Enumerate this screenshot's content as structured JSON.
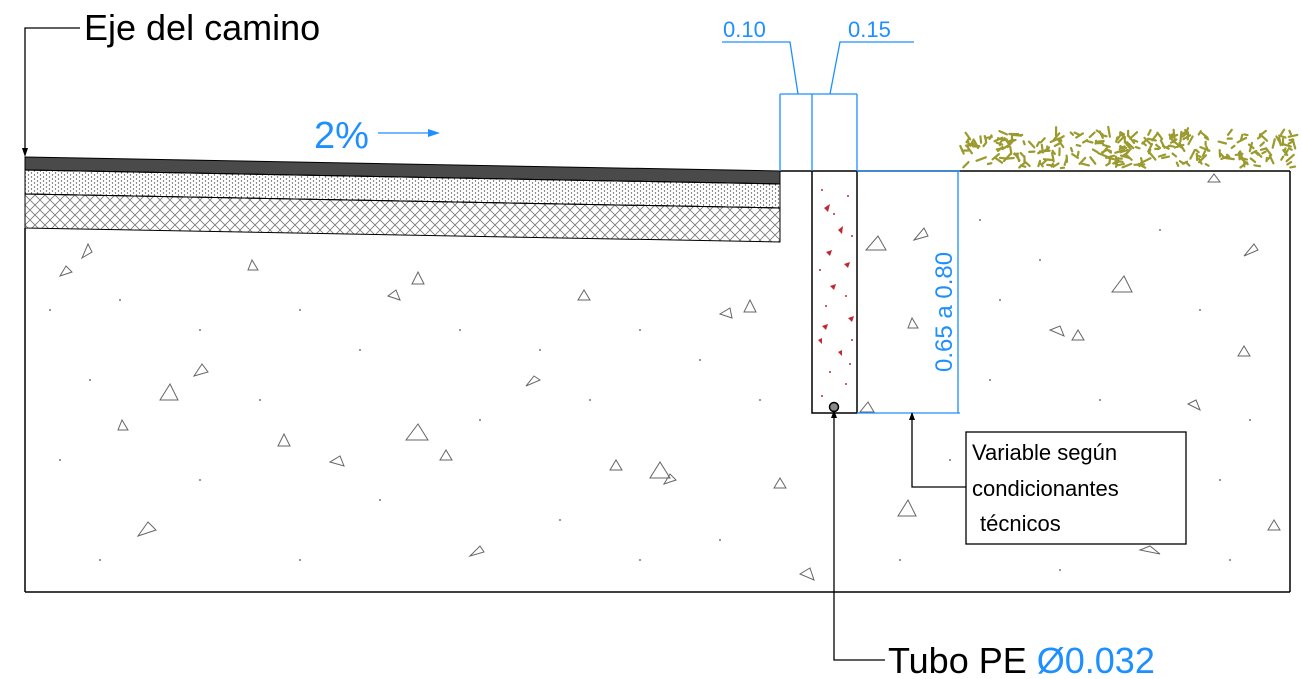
{
  "labels": {
    "road_axis": "Eje del camino",
    "slope": "2%",
    "dim_width_1": "0.10",
    "dim_width_2": "0.15",
    "dim_depth": "0.65 a 0.80",
    "note_line1": "Variable según",
    "note_line2": "condicionantes",
    "note_line3": "técnicos",
    "pipe_prefix": "Tubo PE ",
    "pipe_size": "Ø0.032"
  },
  "colors": {
    "dimension": "#1e8fff",
    "linework": "#000000",
    "asphalt": "#4a4a4a",
    "gravel_fill": "#e6e6e6",
    "vegetation": "#9a9a2e",
    "trench_dots": "#c0282d"
  },
  "icons": {
    "slope_arrow": "arrow-right-icon",
    "pipe": "circle-icon"
  }
}
